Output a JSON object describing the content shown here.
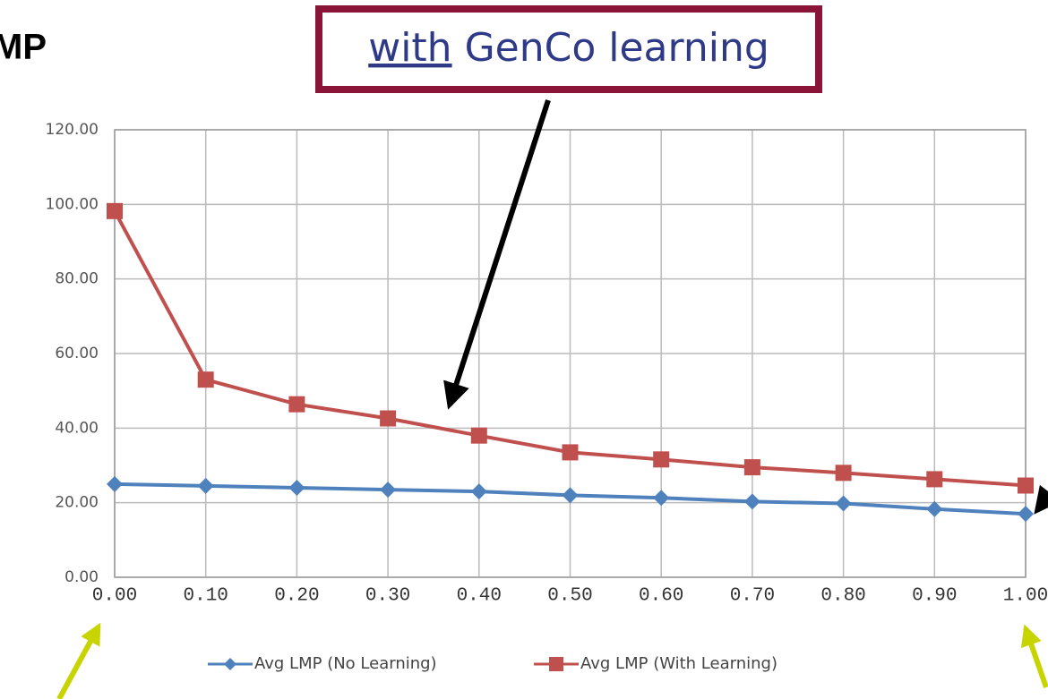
{
  "chart_data": {
    "type": "line",
    "title": "MP",
    "annotation": {
      "underlined": "with",
      "text": "GenCo learning"
    },
    "x": [
      0,
      0.1,
      0.2,
      0.3,
      0.4,
      0.5,
      0.6,
      0.7,
      0.8,
      0.9,
      1
    ],
    "xlim": [
      0,
      1
    ],
    "xticks": [
      {
        "value": 0,
        "label": "0.00"
      },
      {
        "value": 0.1,
        "label": "0.10"
      },
      {
        "value": 0.2,
        "label": "0.20"
      },
      {
        "value": 0.3,
        "label": "0.30"
      },
      {
        "value": 0.4,
        "label": "0.40"
      },
      {
        "value": 0.5,
        "label": "0.50"
      },
      {
        "value": 0.6,
        "label": "0.60"
      },
      {
        "value": 0.7,
        "label": "0.70"
      },
      {
        "value": 0.8,
        "label": "0.80"
      },
      {
        "value": 0.9,
        "label": "0.90"
      },
      {
        "value": 1,
        "label": "1.00"
      }
    ],
    "ylim": [
      0,
      120
    ],
    "yticks": [
      {
        "value": 0,
        "label": "0.00"
      },
      {
        "value": 20,
        "label": "20.00"
      },
      {
        "value": 40,
        "label": "40.00"
      },
      {
        "value": 60,
        "label": "60.00"
      },
      {
        "value": 80,
        "label": "80.00"
      },
      {
        "value": 100,
        "label": "100.00"
      },
      {
        "value": 120,
        "label": "120.00"
      }
    ],
    "grid": true,
    "series": [
      {
        "name": "Avg LMP (No Learning)",
        "color": "#4f81bd",
        "marker": "diamond",
        "values": [
          25,
          24.5,
          24,
          23.5,
          23,
          22,
          21.3,
          20.3,
          19.8,
          18.3,
          17
        ]
      },
      {
        "name": "Avg LMP (With Learning)",
        "color": "#c0504d",
        "marker": "square",
        "values": [
          98.2,
          53,
          46.4,
          42.6,
          38,
          33.5,
          31.6,
          29.5,
          28,
          26.3,
          24.6
        ]
      }
    ]
  }
}
